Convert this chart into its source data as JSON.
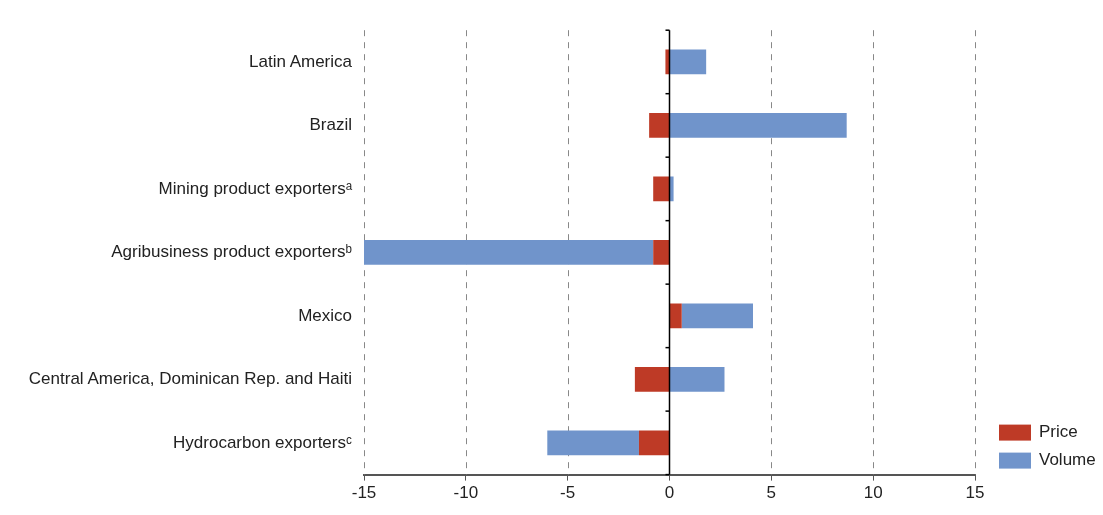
{
  "chart_data": {
    "type": "bar",
    "orientation": "horizontal",
    "stacked": true,
    "categories": [
      "Latin America",
      "Brazil",
      "Mining product exportersᵃ",
      "Agribusiness product exportersᵇ",
      "Mexico",
      "Central America, Dominican Rep. and Haiti",
      "Hydrocarbon exportersᶜ"
    ],
    "series": [
      {
        "name": "Price",
        "color": "#be3a26",
        "values": [
          -0.2,
          -1.0,
          -0.8,
          -0.8,
          0.6,
          -1.7,
          -1.5
        ]
      },
      {
        "name": "Volume",
        "color": "#7094cb",
        "values": [
          1.8,
          8.7,
          0.2,
          -14.2,
          3.5,
          2.7,
          -4.5
        ]
      }
    ],
    "xlim": [
      -15,
      15
    ],
    "xticks": [
      -15,
      -10,
      -5,
      0,
      5,
      10,
      15
    ],
    "grid": "x",
    "legend": "bottom right"
  }
}
